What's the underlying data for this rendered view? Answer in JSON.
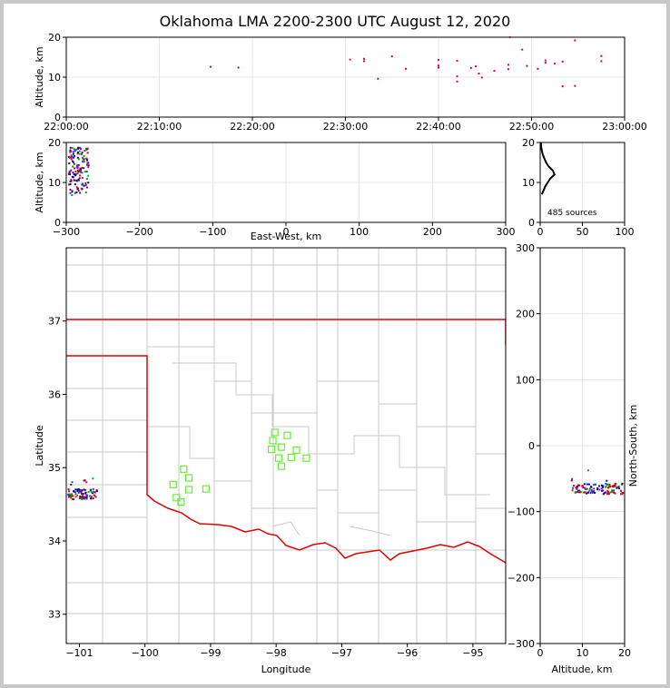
{
  "title": "Oklahoma LMA 2200-2300 UTC August 12, 2020",
  "chart_data": [
    {
      "id": "time-height",
      "type": "scatter",
      "ylabel": "Altitude, km",
      "ylim": [
        0,
        20
      ],
      "yticks": [
        "0",
        "10",
        "20"
      ],
      "xticks": [
        "22:00:00",
        "22:10:00",
        "22:20:00",
        "22:30:00",
        "22:40:00",
        "22:50:00",
        "23:00:00"
      ],
      "grid": true,
      "points": [
        {
          "t": "22:15:30",
          "alt": 12.6
        },
        {
          "t": "22:18:30",
          "alt": 12.4
        },
        {
          "t": "22:30:30",
          "alt": 14.4
        },
        {
          "t": "22:32:00",
          "alt": 14.6
        },
        {
          "t": "22:32:00",
          "alt": 14.0
        },
        {
          "t": "22:33:30",
          "alt": 9.6
        },
        {
          "t": "22:35:00",
          "alt": 15.2
        },
        {
          "t": "22:36:30",
          "alt": 12.1
        },
        {
          "t": "22:40:00",
          "alt": 14.3
        },
        {
          "t": "22:40:00",
          "alt": 12.9
        },
        {
          "t": "22:40:00",
          "alt": 12.4
        },
        {
          "t": "22:42:00",
          "alt": 14.1
        },
        {
          "t": "22:42:00",
          "alt": 10.2
        },
        {
          "t": "22:42:00",
          "alt": 8.9
        },
        {
          "t": "22:43:30",
          "alt": 12.3
        },
        {
          "t": "22:44:00",
          "alt": 12.7
        },
        {
          "t": "22:44:20",
          "alt": 10.9
        },
        {
          "t": "22:44:40",
          "alt": 9.9
        },
        {
          "t": "22:46:00",
          "alt": 11.6
        },
        {
          "t": "22:47:30",
          "alt": 13.1
        },
        {
          "t": "22:47:30",
          "alt": 12.0
        },
        {
          "t": "22:47:40",
          "alt": 20.0
        },
        {
          "t": "22:49:00",
          "alt": 16.9
        },
        {
          "t": "22:49:30",
          "alt": 12.8
        },
        {
          "t": "22:50:40",
          "alt": 12.1
        },
        {
          "t": "22:51:30",
          "alt": 14.2
        },
        {
          "t": "22:51:30",
          "alt": 13.6
        },
        {
          "t": "22:52:30",
          "alt": 13.4
        },
        {
          "t": "22:53:20",
          "alt": 13.9
        },
        {
          "t": "22:53:20",
          "alt": 7.7
        },
        {
          "t": "22:54:40",
          "alt": 19.2
        },
        {
          "t": "22:54:40",
          "alt": 7.8
        },
        {
          "t": "22:57:30",
          "alt": 15.3
        },
        {
          "t": "22:57:30",
          "alt": 14.0
        }
      ]
    },
    {
      "id": "ew-altitude",
      "type": "scatter",
      "xlabel": "East-West, km",
      "ylabel": "Altitude, km",
      "xlim": [
        -300,
        300
      ],
      "ylim": [
        0,
        20
      ],
      "xticks": [
        "−300",
        "−200",
        "−100",
        "0",
        "100",
        "200",
        "300"
      ],
      "yticks": [
        "0",
        "10",
        "20"
      ],
      "grid": true
    },
    {
      "id": "altitude-histogram",
      "type": "line",
      "annotation": "485 sources",
      "xlim": [
        0,
        100
      ],
      "ylim": [
        0,
        20
      ],
      "xticks": [
        "0",
        "50",
        "100"
      ],
      "yticks": [
        "0",
        "10",
        "20"
      ],
      "grid": true,
      "histogram": [
        {
          "alt": 7,
          "count": 2
        },
        {
          "alt": 8,
          "count": 4
        },
        {
          "alt": 9,
          "count": 6
        },
        {
          "alt": 10,
          "count": 9
        },
        {
          "alt": 11,
          "count": 12
        },
        {
          "alt": 12,
          "count": 17
        },
        {
          "alt": 13,
          "count": 15
        },
        {
          "alt": 14,
          "count": 10
        },
        {
          "alt": 15,
          "count": 7
        },
        {
          "alt": 16,
          "count": 5
        },
        {
          "alt": 17,
          "count": 3
        },
        {
          "alt": 18,
          "count": 2
        },
        {
          "alt": 19,
          "count": 1
        },
        {
          "alt": 20,
          "count": 1
        }
      ]
    },
    {
      "id": "plan-view",
      "type": "scatter",
      "xlabel": "Longitude",
      "ylabel": "Latitude",
      "xlim": [
        -101.2,
        -94.5
      ],
      "ylim": [
        32.6,
        38.0
      ],
      "xticks": [
        "−101",
        "−100",
        "−99",
        "−98",
        "−97",
        "−96",
        "−95"
      ],
      "yticks": [
        "33",
        "34",
        "35",
        "36",
        "37"
      ],
      "stations": [
        {
          "lon": -98.02,
          "lat": 35.48
        },
        {
          "lon": -97.83,
          "lat": 35.44
        },
        {
          "lon": -98.05,
          "lat": 35.37
        },
        {
          "lon": -97.92,
          "lat": 35.28
        },
        {
          "lon": -98.07,
          "lat": 35.25
        },
        {
          "lon": -97.69,
          "lat": 35.24
        },
        {
          "lon": -97.77,
          "lat": 35.14
        },
        {
          "lon": -97.54,
          "lat": 35.13
        },
        {
          "lon": -97.96,
          "lat": 35.13
        },
        {
          "lon": -97.92,
          "lat": 35.02
        },
        {
          "lon": -99.41,
          "lat": 34.98
        },
        {
          "lon": -99.33,
          "lat": 34.86
        },
        {
          "lon": -99.57,
          "lat": 34.77
        },
        {
          "lon": -99.07,
          "lat": 34.71
        },
        {
          "lon": -99.33,
          "lat": 34.7
        },
        {
          "lon": -99.52,
          "lat": 34.59
        },
        {
          "lon": -99.45,
          "lat": 34.53
        }
      ]
    },
    {
      "id": "altitude-ns",
      "type": "scatter",
      "xlabel": "Altitude, km",
      "ylabel": "North-South, km",
      "xlim": [
        0,
        20
      ],
      "ylim": [
        -300,
        300
      ],
      "xticks": [
        "0",
        "10",
        "20"
      ],
      "yticks": [
        "−300",
        "−200",
        "−100",
        "0",
        "100",
        "200",
        "300"
      ],
      "grid": true
    }
  ]
}
